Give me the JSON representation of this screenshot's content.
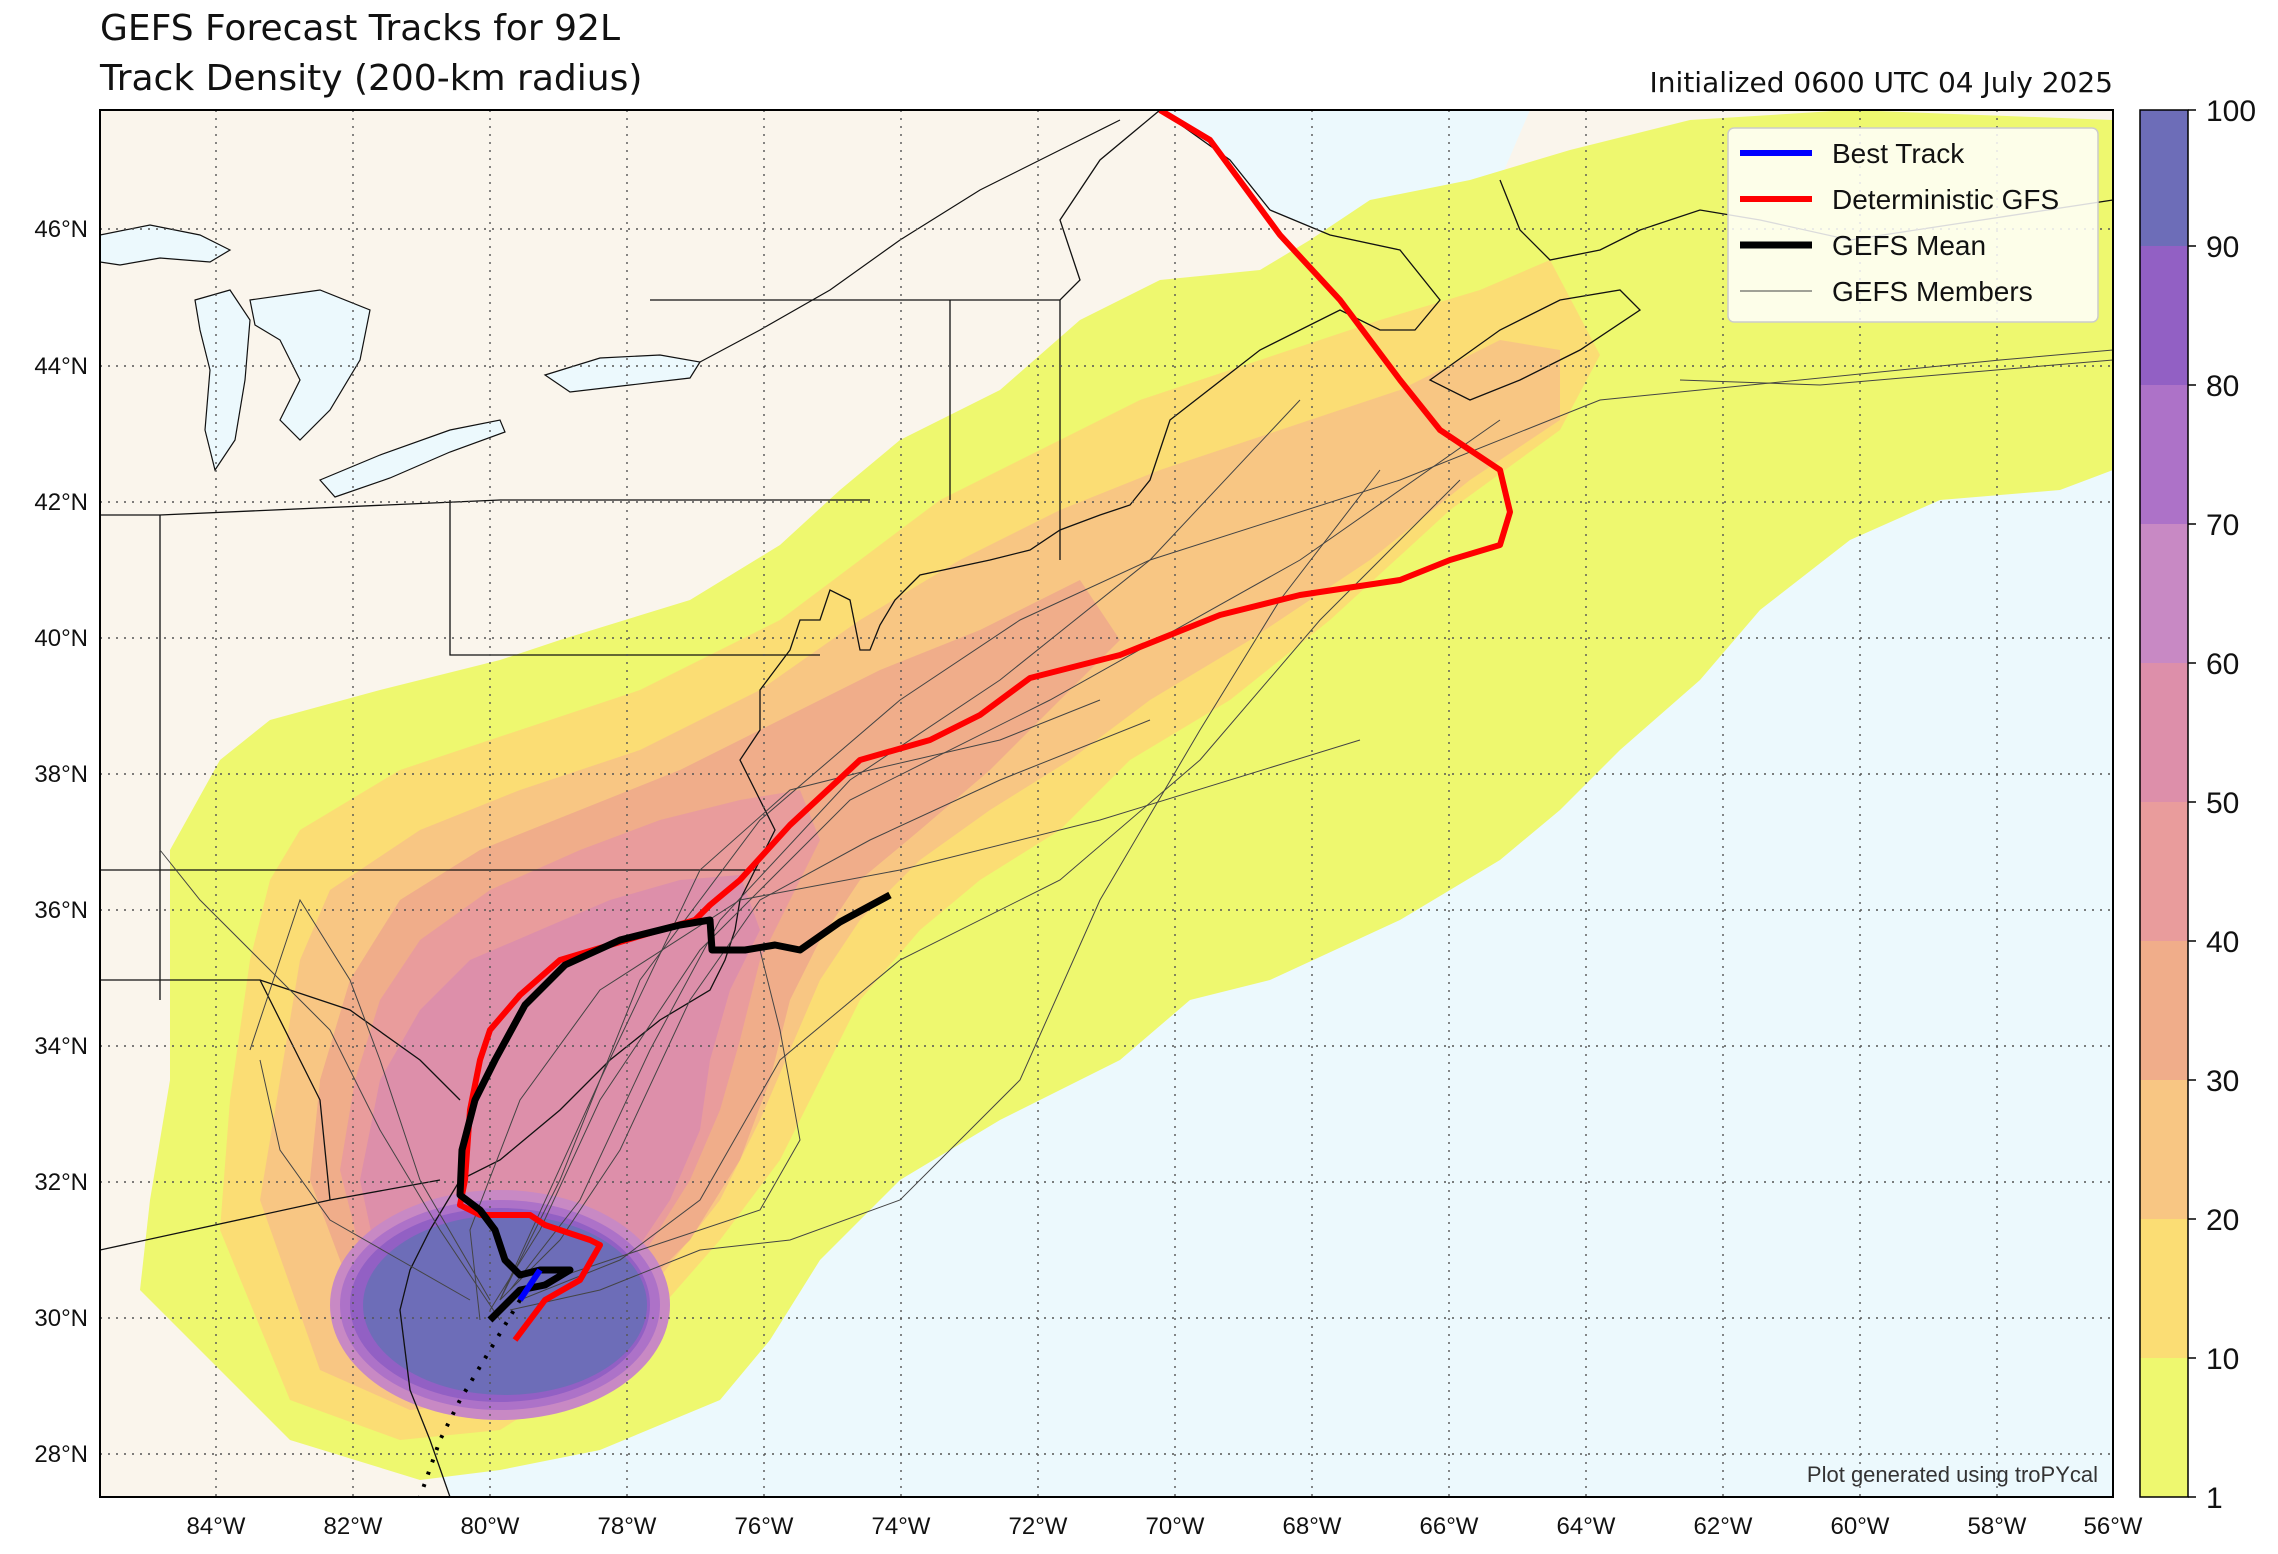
{
  "title_line1": "GEFS Forecast Tracks for 92L",
  "title_line2": "Track Density (200-km radius)",
  "init_label": "Initialized 0600 UTC 04 July 2025",
  "credit": "Plot generated using troPYcal",
  "legend": [
    {
      "label": "Best Track",
      "color": "#0000ff",
      "width": 6
    },
    {
      "label": "Deterministic GFS",
      "color": "#ff0000",
      "width": 6
    },
    {
      "label": "GEFS Mean",
      "color": "#000000",
      "width": 7
    },
    {
      "label": "GEFS Members",
      "color": "#444444",
      "width": 1
    }
  ],
  "colorbar": {
    "ticks": [
      "1",
      "10",
      "20",
      "30",
      "40",
      "50",
      "60",
      "70",
      "80",
      "90",
      "100"
    ],
    "colors": [
      "#eef86f",
      "#fbdd74",
      "#f8c683",
      "#f0ad8a",
      "#e99c9c",
      "#dd8faa",
      "#c889c4",
      "#ad72c8",
      "#9260c4",
      "#6d6db8"
    ]
  },
  "lon_labels": [
    "84°W",
    "82°W",
    "80°W",
    "78°W",
    "76°W",
    "74°W",
    "72°W",
    "70°W",
    "68°W",
    "66°W",
    "64°W",
    "62°W",
    "60°W",
    "58°W",
    "56°W"
  ],
  "lat_labels": [
    "46°N",
    "44°N",
    "42°N",
    "40°N",
    "38°N",
    "36°N",
    "34°N",
    "32°N",
    "30°N",
    "28°N"
  ],
  "colors": {
    "land": "#faf5ec",
    "ocean": "#ecf9fd",
    "best_track": "#0000ff",
    "gfs": "#ff0000",
    "gefs_mean": "#000000"
  }
}
